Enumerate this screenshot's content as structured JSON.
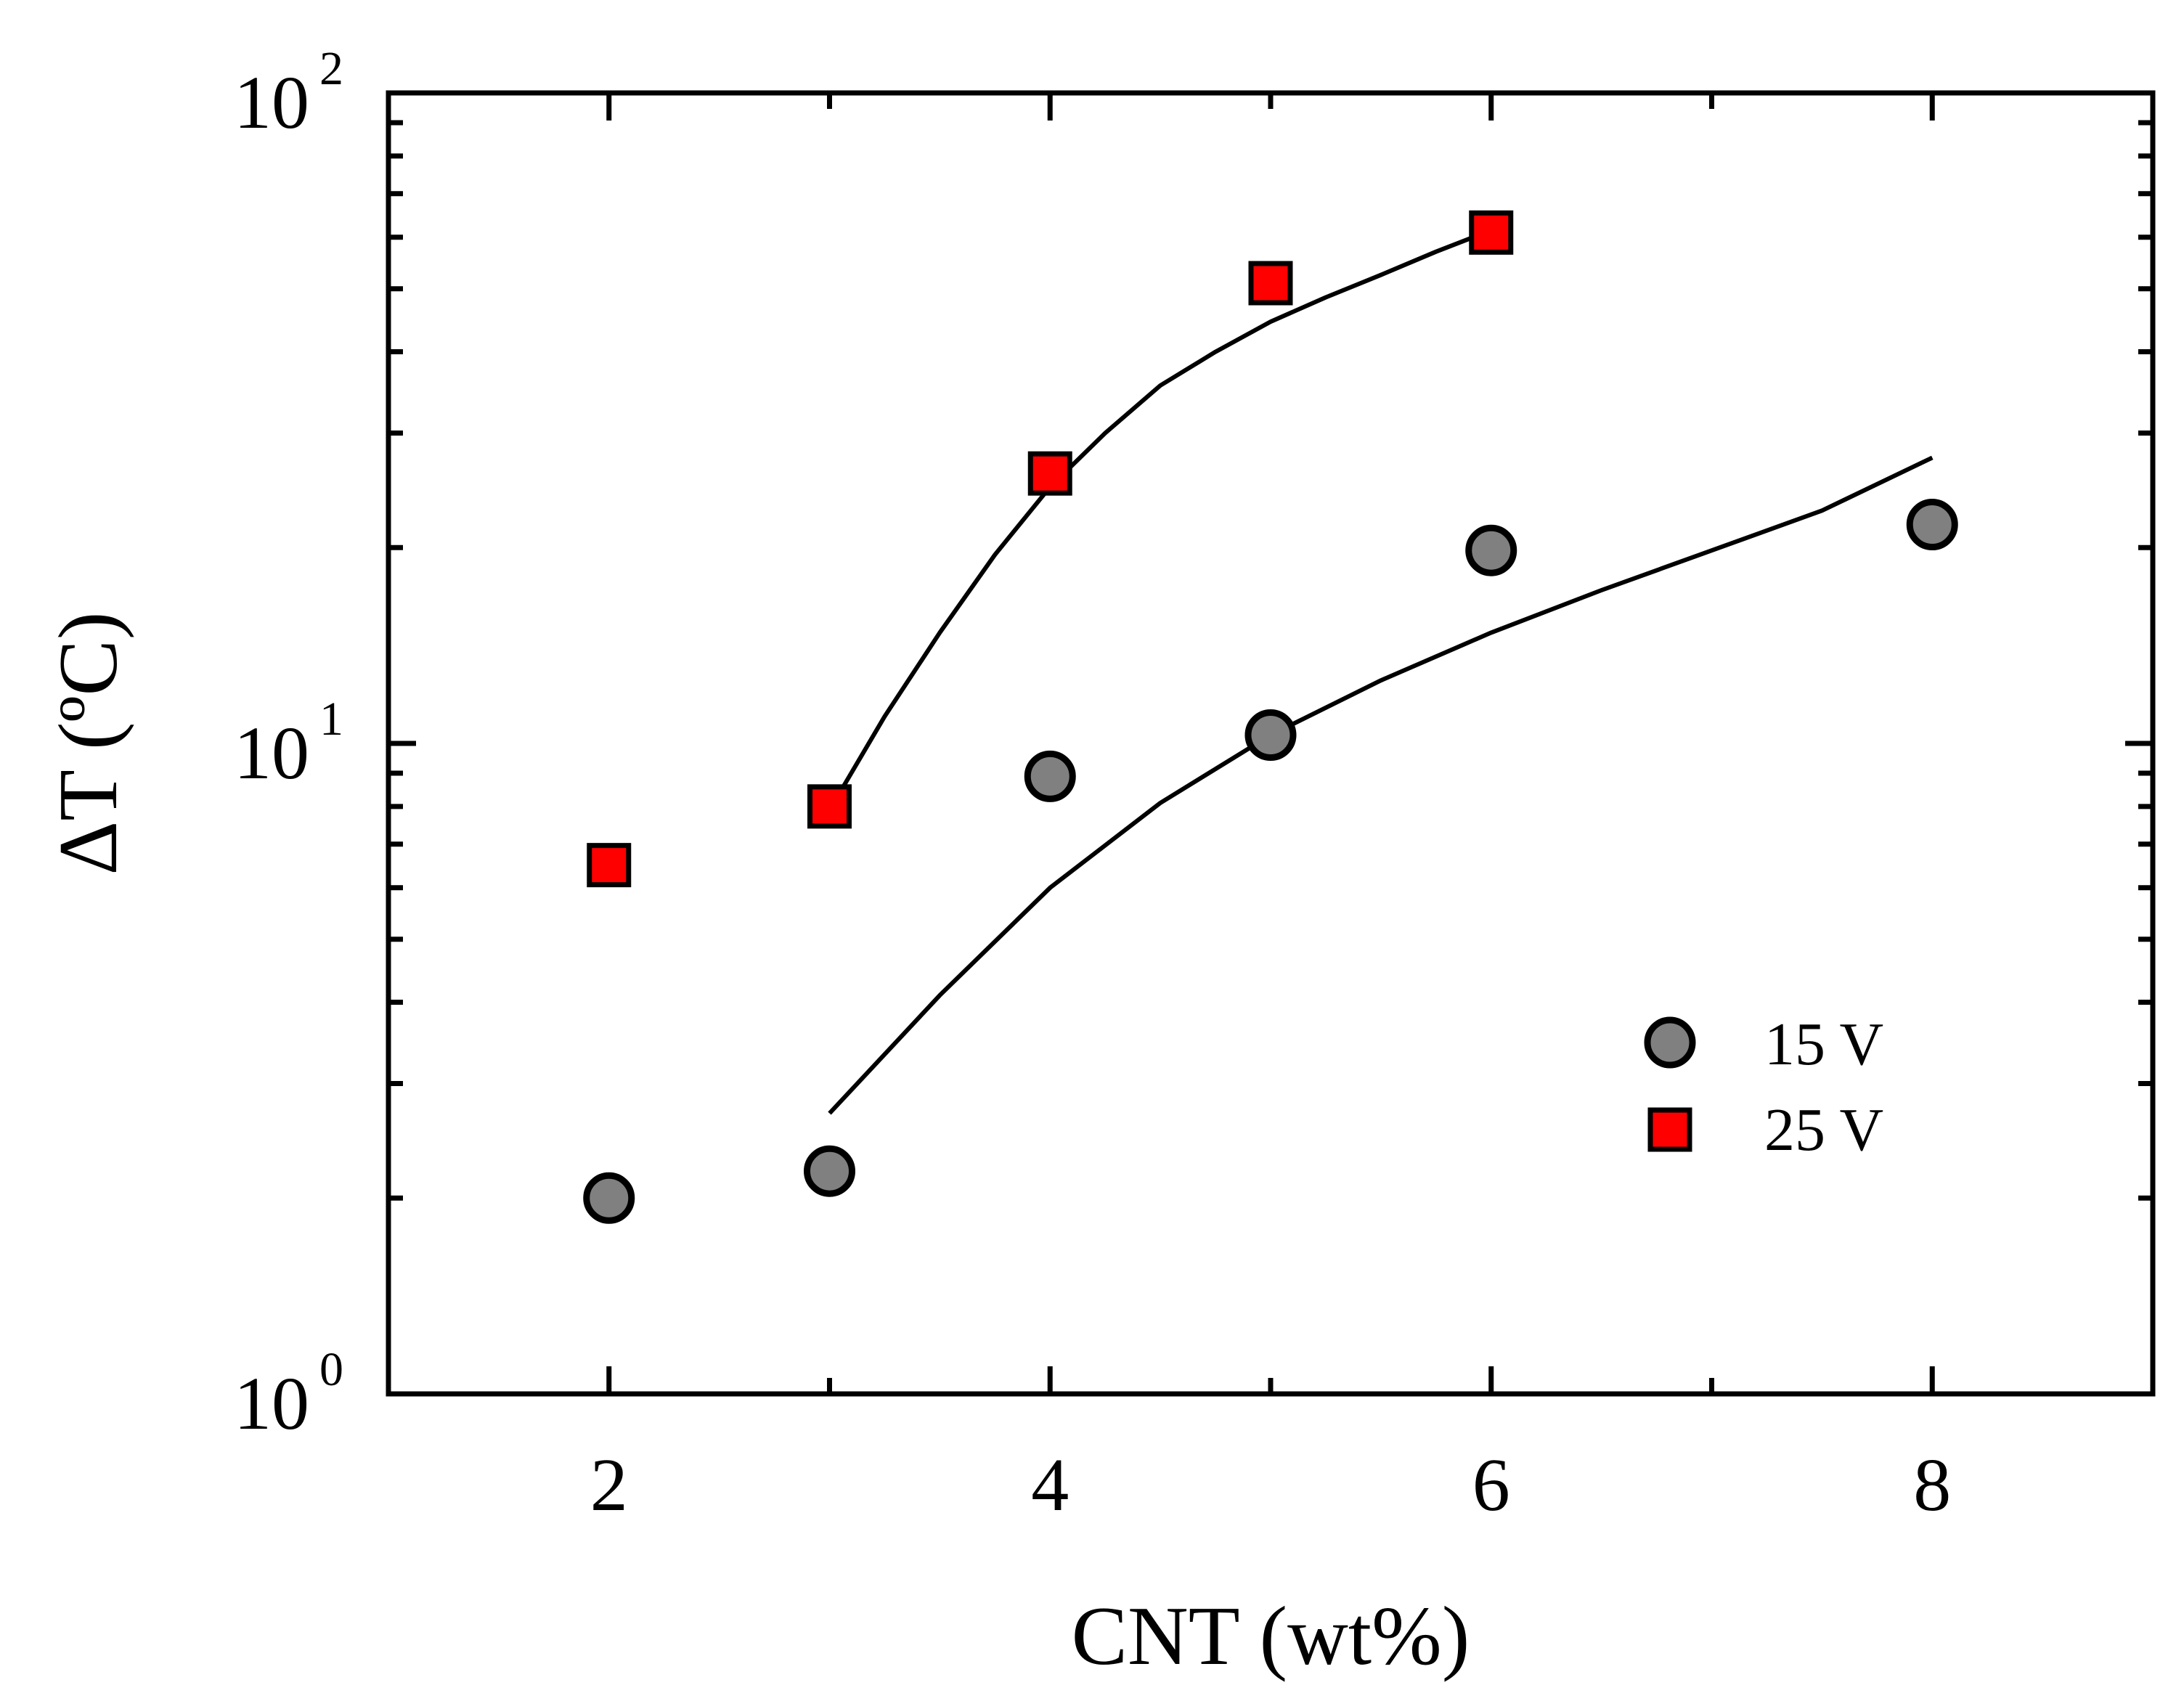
{
  "chart_data": {
    "type": "scatter",
    "title": "",
    "xlabel": "CNT (wt%)",
    "ylabel": "ΔT (ºC)",
    "x_scale": "linear",
    "y_scale": "log",
    "xlim": [
      1,
      9
    ],
    "ylim": [
      1,
      100
    ],
    "x_ticks": [
      {
        "value": 2,
        "label": "2"
      },
      {
        "value": 4,
        "label": "4"
      },
      {
        "value": 6,
        "label": "6"
      },
      {
        "value": 8,
        "label": "8"
      }
    ],
    "y_ticks": [
      {
        "value": 1,
        "base": "10",
        "exp": "0"
      },
      {
        "value": 10,
        "base": "10",
        "exp": "1"
      },
      {
        "value": 100,
        "base": "10",
        "exp": "2"
      }
    ],
    "legend_position": "lower-right",
    "series": [
      {
        "name": "15 V",
        "marker": "circle",
        "color": "#808080",
        "x": [
          2,
          3,
          4,
          5,
          6,
          8
        ],
        "y": [
          2.0,
          2.2,
          8.9,
          10.3,
          19.8,
          21.7
        ],
        "fit": {
          "x": [
            3.0,
            3.5,
            4.0,
            4.5,
            5.0,
            5.5,
            6.0,
            6.5,
            7.0,
            7.5,
            8.0
          ],
          "y": [
            2.7,
            4.1,
            6.0,
            8.1,
            10.3,
            12.5,
            14.8,
            17.2,
            19.8,
            22.8,
            27.5
          ]
        }
      },
      {
        "name": "25 V",
        "marker": "square",
        "color": "#ff0000",
        "x": [
          2,
          3,
          4,
          5,
          6
        ],
        "y": [
          6.5,
          8.0,
          26.0,
          51.0,
          61.0
        ],
        "fit": {
          "x": [
            3.0,
            3.25,
            3.5,
            3.75,
            4.0,
            4.25,
            4.5,
            4.75,
            5.0,
            5.25,
            5.5,
            5.75,
            6.0
          ],
          "y": [
            7.9,
            11.0,
            14.8,
            19.5,
            24.8,
            30.0,
            35.5,
            40.0,
            44.5,
            48.5,
            52.5,
            57.0,
            61.5
          ]
        }
      }
    ]
  }
}
